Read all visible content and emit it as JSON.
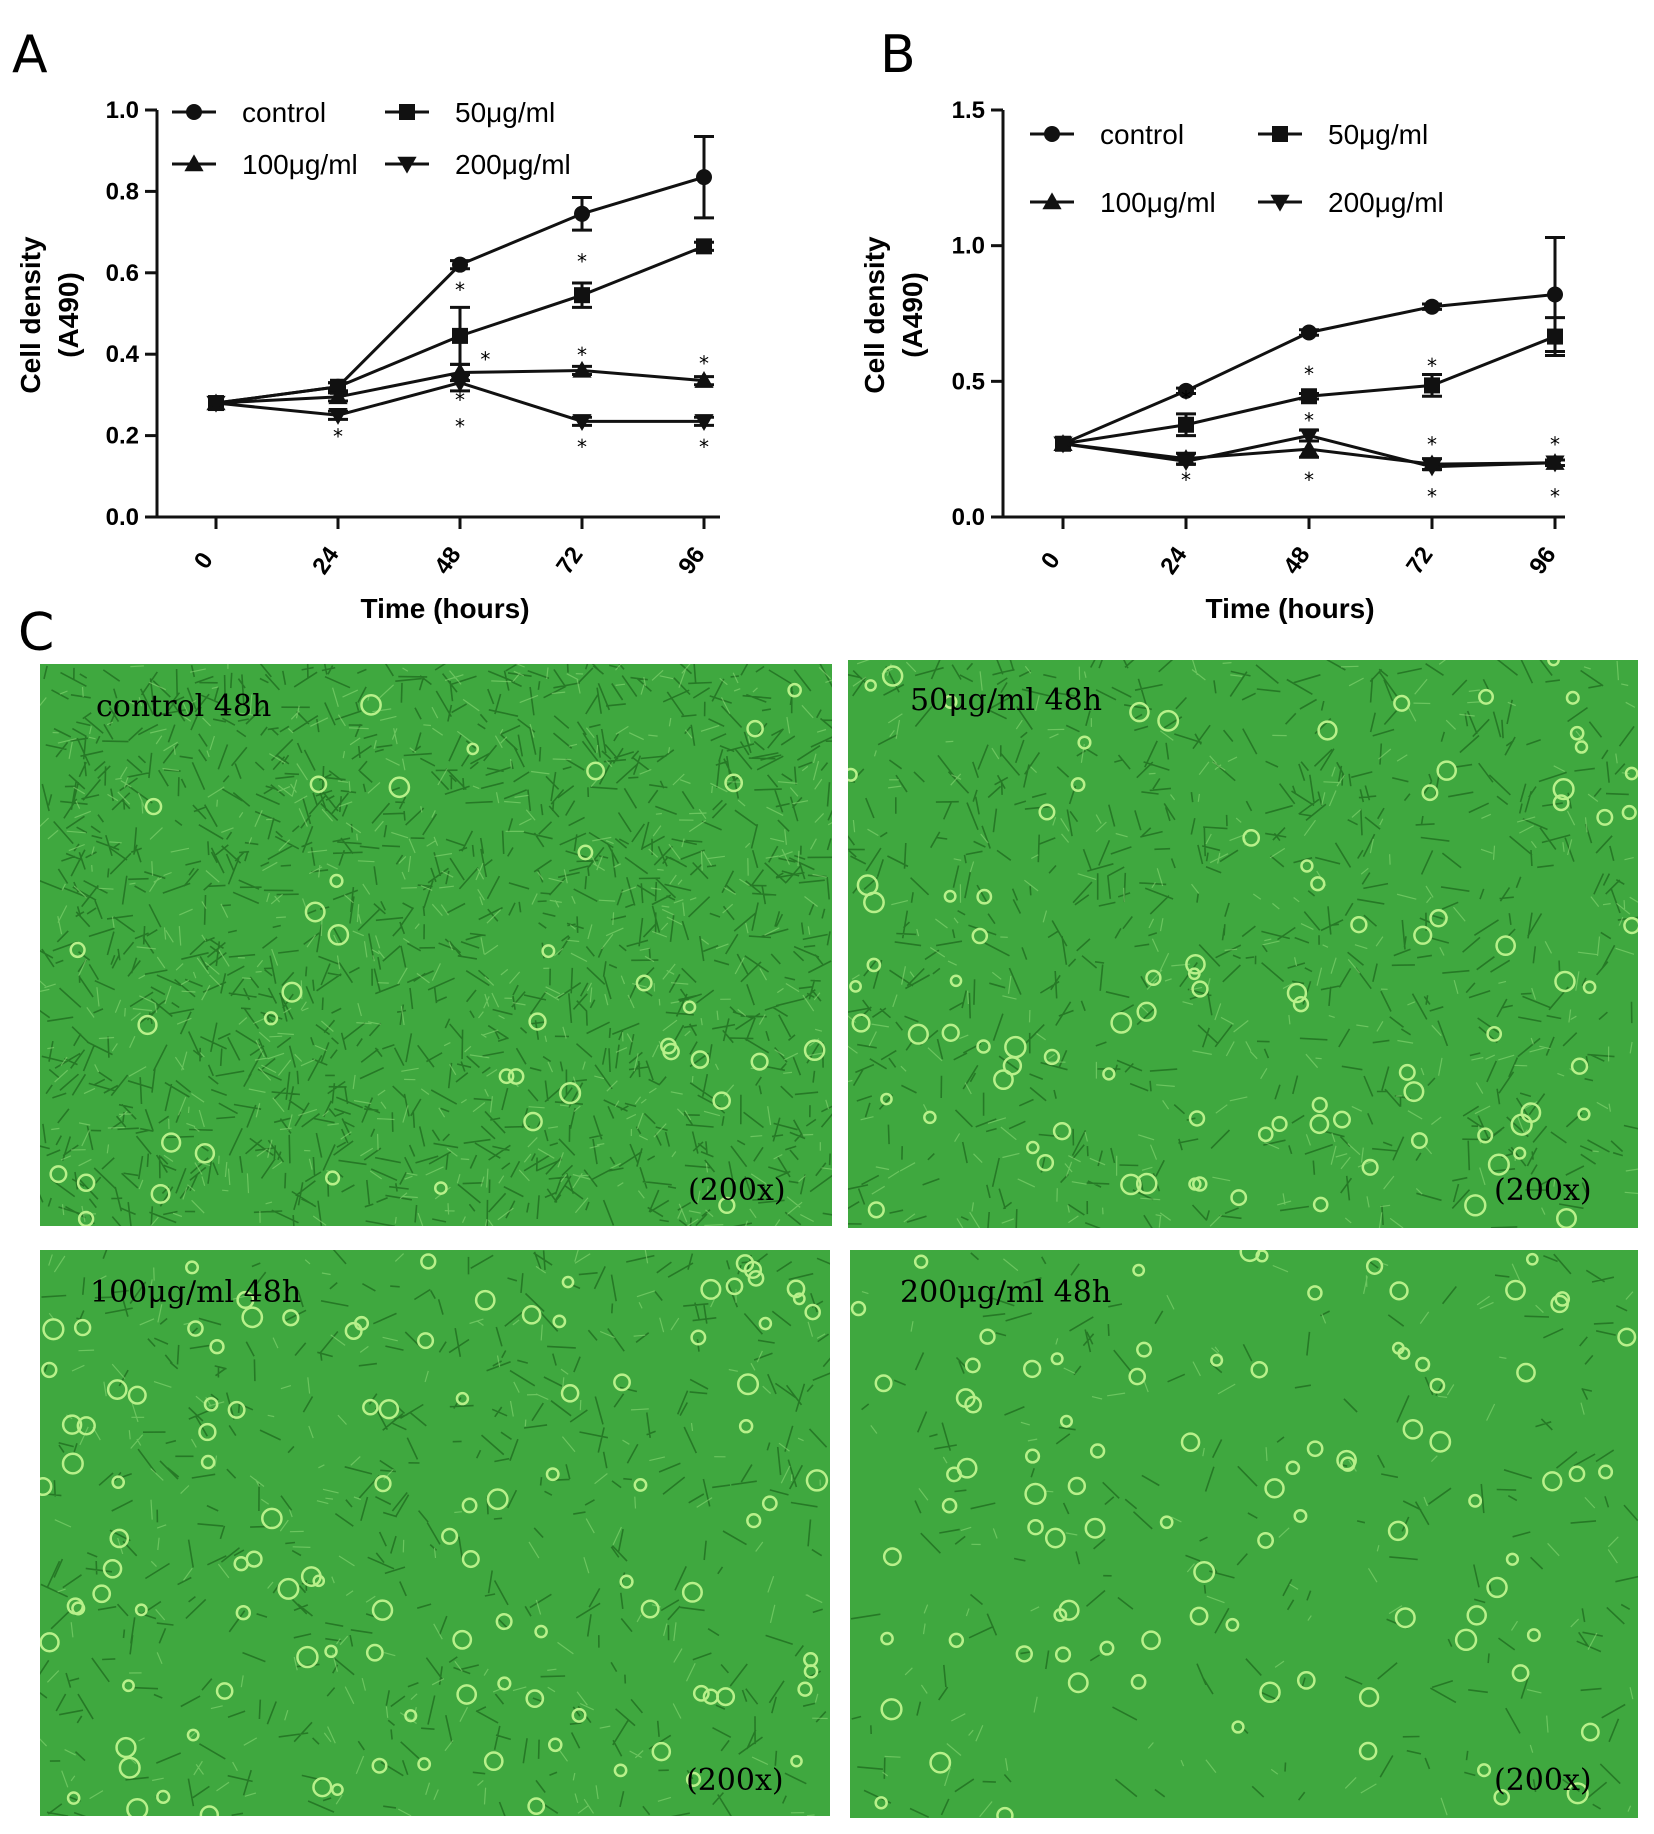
{
  "panels": {
    "A": "A",
    "B": "B",
    "C": "C"
  },
  "chart_data": [
    {
      "type": "line",
      "panel": "A",
      "x": [
        0,
        24,
        48,
        72,
        96
      ],
      "xlabel": "Time (hours)",
      "ylabel": "Cell density",
      "ylabel_sub": "(A490)",
      "ylim": [
        0.0,
        1.0
      ],
      "yticks": [
        "0.0",
        "0.2",
        "0.4",
        "0.6",
        "0.8",
        "1.0"
      ],
      "legend_position": "top",
      "series": [
        {
          "name": "control",
          "marker": "circle",
          "values": [
            0.28,
            0.32,
            0.62,
            0.745,
            0.835
          ],
          "err": [
            0,
            0.01,
            0.01,
            0.04,
            0.1
          ]
        },
        {
          "name": "50μg/ml",
          "marker": "square",
          "values": [
            0.28,
            0.32,
            0.445,
            0.545,
            0.665
          ],
          "err": [
            0,
            0.01,
            0.07,
            0.03,
            0.01
          ]
        },
        {
          "name": "100μg/ml",
          "marker": "triangle",
          "values": [
            0.28,
            0.295,
            0.355,
            0.36,
            0.335
          ],
          "err": [
            0,
            0.01,
            0.02,
            0.01,
            0.01
          ]
        },
        {
          "name": "200μg/ml",
          "marker": "triangle-down",
          "values": [
            0.28,
            0.25,
            0.33,
            0.235,
            0.235
          ],
          "err": [
            0,
            0.01,
            0.02,
            0.01,
            0.01
          ]
        }
      ],
      "annotations": [
        {
          "x": 24,
          "y": 0.2,
          "text": "*"
        },
        {
          "x": 48,
          "y": 0.56,
          "text": "*"
        },
        {
          "x": 48,
          "y": 0.29,
          "text": "*"
        },
        {
          "x": 48,
          "y": 0.225,
          "text": "*"
        },
        {
          "x": 53,
          "y": 0.39,
          "text": "*"
        },
        {
          "x": 72,
          "y": 0.63,
          "text": "*"
        },
        {
          "x": 72,
          "y": 0.4,
          "text": "*"
        },
        {
          "x": 72,
          "y": 0.175,
          "text": "*"
        },
        {
          "x": 96,
          "y": 0.38,
          "text": "*"
        },
        {
          "x": 96,
          "y": 0.175,
          "text": "*"
        }
      ]
    },
    {
      "type": "line",
      "panel": "B",
      "x": [
        0,
        24,
        48,
        72,
        96
      ],
      "xlabel": "Time (hours)",
      "ylabel": "Cell density",
      "ylabel_sub": "(A490)",
      "ylim": [
        0.0,
        1.5
      ],
      "yticks": [
        "0.0",
        "0.5",
        "1.0",
        "1.5"
      ],
      "legend_position": "top",
      "series": [
        {
          "name": "control",
          "marker": "circle",
          "values": [
            0.27,
            0.465,
            0.68,
            0.775,
            0.82
          ],
          "err": [
            0,
            0.01,
            0.01,
            0.01,
            0.21
          ]
        },
        {
          "name": "50μg/ml",
          "marker": "square",
          "values": [
            0.27,
            0.34,
            0.445,
            0.485,
            0.665
          ],
          "err": [
            0,
            0.04,
            0.01,
            0.04,
            0.07
          ]
        },
        {
          "name": "100μg/ml",
          "marker": "triangle",
          "values": [
            0.27,
            0.215,
            0.25,
            0.195,
            0.2
          ],
          "err": [
            0,
            0.02,
            0.03,
            0.02,
            0.01
          ]
        },
        {
          "name": "200μg/ml",
          "marker": "triangle-down",
          "values": [
            0.27,
            0.205,
            0.3,
            0.185,
            0.2
          ],
          "err": [
            0,
            0.01,
            0.02,
            0.01,
            0.01
          ]
        }
      ],
      "annotations": [
        {
          "x": 24,
          "y": 0.44,
          "text": "*"
        },
        {
          "x": 24,
          "y": 0.14,
          "text": "*"
        },
        {
          "x": 48,
          "y": 0.53,
          "text": "*"
        },
        {
          "x": 48,
          "y": 0.36,
          "text": "*"
        },
        {
          "x": 48,
          "y": 0.14,
          "text": "*"
        },
        {
          "x": 72,
          "y": 0.56,
          "text": "*"
        },
        {
          "x": 72,
          "y": 0.27,
          "text": "*"
        },
        {
          "x": 72,
          "y": 0.08,
          "text": "*"
        },
        {
          "x": 96,
          "y": 0.27,
          "text": "*"
        },
        {
          "x": 96,
          "y": 0.08,
          "text": "*"
        }
      ]
    }
  ],
  "micrographs": [
    {
      "label": "control   48h",
      "magnification": "(200x)",
      "density": "high"
    },
    {
      "label": "50μg/ml   48h",
      "magnification": "(200x)",
      "density": "medium"
    },
    {
      "label": "100μg/ml   48h",
      "magnification": "(200x)",
      "density": "low"
    },
    {
      "label": "200μg/ml   48h",
      "magnification": "(200x)",
      "density": "sparse"
    }
  ],
  "colors": {
    "line": "#111111",
    "micro_bg": "#3fa83f",
    "micro_cell": "#1f6a1f",
    "micro_round": "#b8f08a"
  }
}
